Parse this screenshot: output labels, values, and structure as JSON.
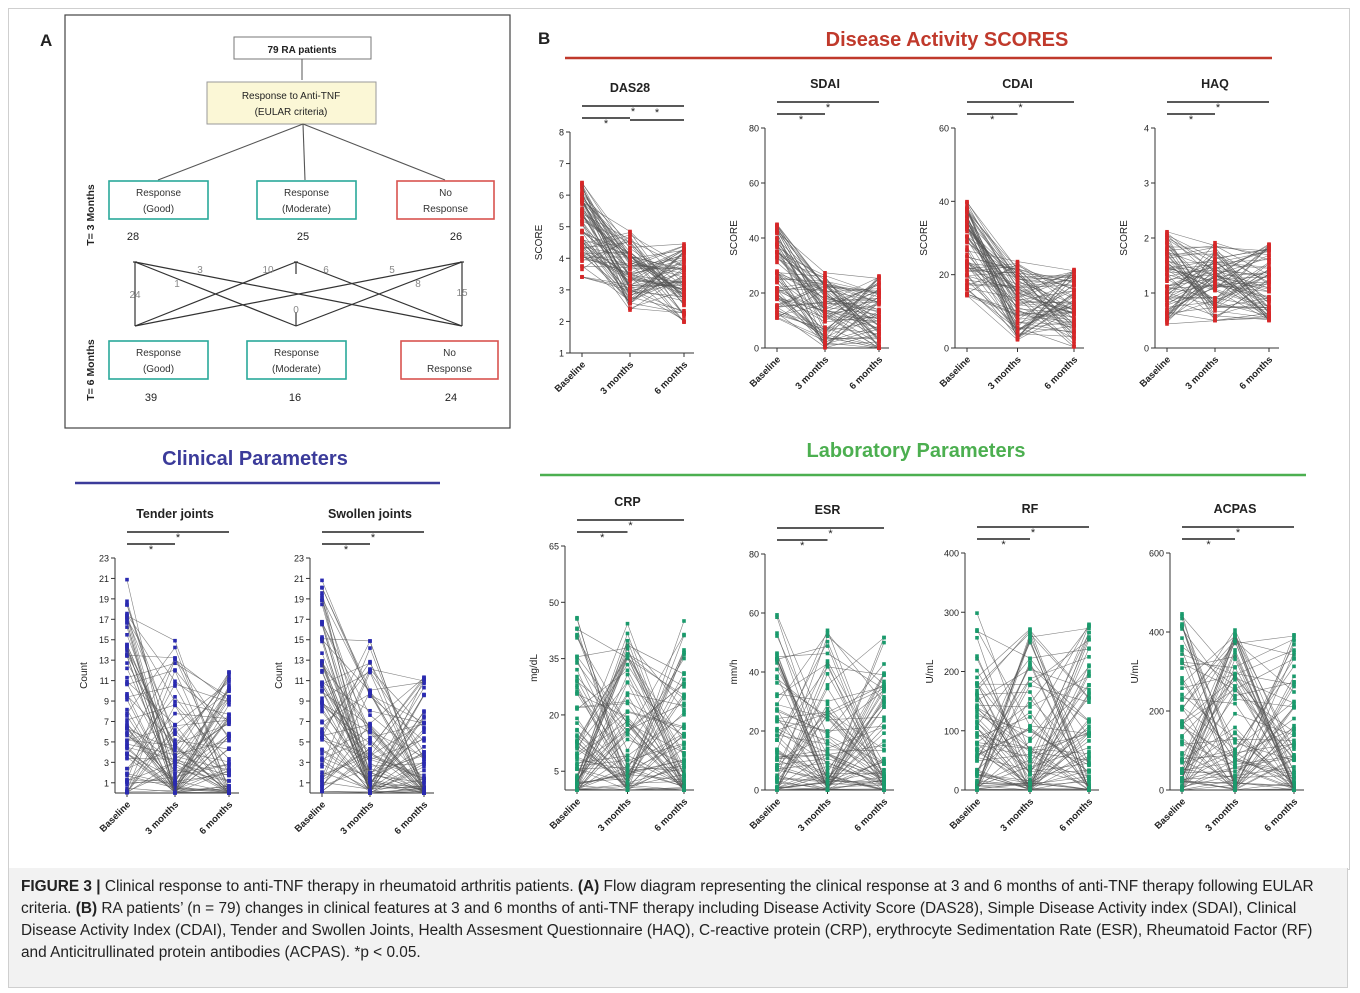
{
  "panel_a": {
    "label": "A",
    "top_box": "79 RA patients",
    "criteria_line1": "Response to Anti-TNF",
    "criteria_line2": "(EULAR criteria)",
    "row1_label": "T= 3 Months",
    "row2_label": "T= 6 Months",
    "row1": [
      {
        "l1": "Response",
        "l2": "(Good)",
        "n": "28",
        "color": "#2aa89a"
      },
      {
        "l1": "Response",
        "l2": "(Moderate)",
        "n": "25",
        "color": "#2aa89a"
      },
      {
        "l1": "No",
        "l2": "Response",
        "n": "26",
        "color": "#d9534f"
      }
    ],
    "row2": [
      {
        "l1": "Response",
        "l2": "(Good)",
        "n": "39",
        "color": "#2aa89a"
      },
      {
        "l1": "Response",
        "l2": "(Moderate)",
        "n": "16",
        "color": "#2aa89a"
      },
      {
        "l1": "No",
        "l2": "Response",
        "n": "24",
        "color": "#d9534f"
      }
    ],
    "transition_numbers": [
      "3",
      "1",
      "24",
      "10",
      "0",
      "6",
      "5",
      "8",
      "15"
    ]
  },
  "panel_b": {
    "label": "B"
  },
  "sections": {
    "disease": {
      "title": "Disease Activity SCORES",
      "color": "#c0392b"
    },
    "lab": {
      "title": "Laboratory Parameters",
      "color": "#4caf50"
    },
    "clinical": {
      "title": "Clinical Parameters",
      "color": "#3b3b9a"
    }
  },
  "chart_data": [
    {
      "type": "line",
      "title": "DAS28",
      "ylabel": "SCORE",
      "categories": [
        "Baseline",
        "3 months",
        "6 months"
      ],
      "ylim": [
        1,
        8
      ],
      "yticks": [
        "1",
        "2",
        "3",
        "4",
        "5",
        "6",
        "7",
        "8"
      ],
      "color": "#d62728",
      "series_means": [
        4.9,
        3.6,
        3.2
      ]
    },
    {
      "type": "line",
      "title": "SDAI",
      "ylabel": "SCORE",
      "categories": [
        "Baseline",
        "3 months",
        "6 months"
      ],
      "ylim": [
        0,
        80
      ],
      "yticks": [
        "0",
        "20",
        "40",
        "60",
        "80"
      ],
      "color": "#d62728",
      "series_means": [
        28,
        14,
        12
      ]
    },
    {
      "type": "line",
      "title": "CDAI",
      "ylabel": "SCORE",
      "categories": [
        "Baseline",
        "3 months",
        "6 months"
      ],
      "ylim": [
        0,
        60
      ],
      "yticks": [
        "0",
        "20",
        "40",
        "60"
      ],
      "color": "#d62728",
      "series_means": [
        27,
        13,
        11
      ]
    },
    {
      "type": "line",
      "title": "HAQ",
      "ylabel": "SCORE",
      "categories": [
        "Baseline",
        "3 months",
        "6 months"
      ],
      "ylim": [
        0,
        4
      ],
      "yticks": [
        "0",
        "1",
        "2",
        "3",
        "4"
      ],
      "color": "#d62728",
      "series_means": [
        1.3,
        1.2,
        1.2
      ]
    },
    {
      "type": "line",
      "title": "CRP",
      "ylabel": "mg/dL",
      "categories": [
        "Baseline",
        "3 months",
        "6 months"
      ],
      "ylim": [
        0,
        65
      ],
      "yticks": [
        "5",
        "20",
        "35",
        "50",
        "65"
      ],
      "color": "#1a9a6c",
      "series_means": [
        12,
        8,
        7
      ]
    },
    {
      "type": "line",
      "title": "ESR",
      "ylabel": "mm/h",
      "categories": [
        "Baseline",
        "3 months",
        "6 months"
      ],
      "ylim": [
        0,
        80
      ],
      "yticks": [
        "0",
        "20",
        "40",
        "60",
        "80"
      ],
      "color": "#1a9a6c",
      "series_means": [
        28,
        22,
        21
      ]
    },
    {
      "type": "line",
      "title": "RF",
      "ylabel": "U/mL",
      "categories": [
        "Baseline",
        "3 months",
        "6 months"
      ],
      "ylim": [
        0,
        400
      ],
      "yticks": [
        "0",
        "100",
        "200",
        "300",
        "400"
      ],
      "color": "#1a9a6c",
      "series_means": [
        60,
        50,
        45
      ]
    },
    {
      "type": "line",
      "title": "ACPAS",
      "ylabel": "U/mL",
      "categories": [
        "Baseline",
        "3 months",
        "6 months"
      ],
      "ylim": [
        0,
        600
      ],
      "yticks": [
        "0",
        "200",
        "400",
        "600"
      ],
      "color": "#1a9a6c",
      "series_means": [
        160,
        150,
        130
      ]
    },
    {
      "type": "line",
      "title": "Tender joints",
      "ylabel": "Count",
      "categories": [
        "Baseline",
        "3 months",
        "6 months"
      ],
      "ylim": [
        0,
        23
      ],
      "yticks": [
        "1",
        "3",
        "5",
        "7",
        "9",
        "11",
        "13",
        "15",
        "17",
        "19",
        "21",
        "23"
      ],
      "color": "#2a2ab0",
      "series_means": [
        8,
        4,
        3
      ]
    },
    {
      "type": "line",
      "title": "Swollen joints",
      "ylabel": "Count",
      "categories": [
        "Baseline",
        "3 months",
        "6 months"
      ],
      "ylim": [
        0,
        23
      ],
      "yticks": [
        "1",
        "3",
        "5",
        "7",
        "9",
        "11",
        "13",
        "15",
        "17",
        "19",
        "21",
        "23"
      ],
      "color": "#2a2ab0",
      "series_means": [
        7,
        3,
        2
      ]
    }
  ],
  "significance_mark": "*",
  "caption": {
    "label": "FIGURE 3 |",
    "intro": " Clinical response to anti-TNF therapy in rheumatoid arthritis patients. ",
    "a_label": "(A)",
    "a_text": " Flow diagram representing the clinical response at 3 and 6 months of anti-TNF therapy following EULAR criteria. ",
    "b_label": "(B)",
    "b_text": " RA patients’ (n = 79) changes in clinical features at 3 and 6 months of anti-TNF therapy including Disease Activity Score (DAS28), Simple Disease Activity index (SDAI), Clinical Disease Activity Index (CDAI), Tender and Swollen Joints, Health Assesment Questionnaire (HAQ), C-reactive protein (CRP), erythrocyte Sedimentation Rate (ESR), Rheumatoid Factor (RF) and Anticitrullinated protein antibodies (ACPAS). *p < 0.05."
  }
}
